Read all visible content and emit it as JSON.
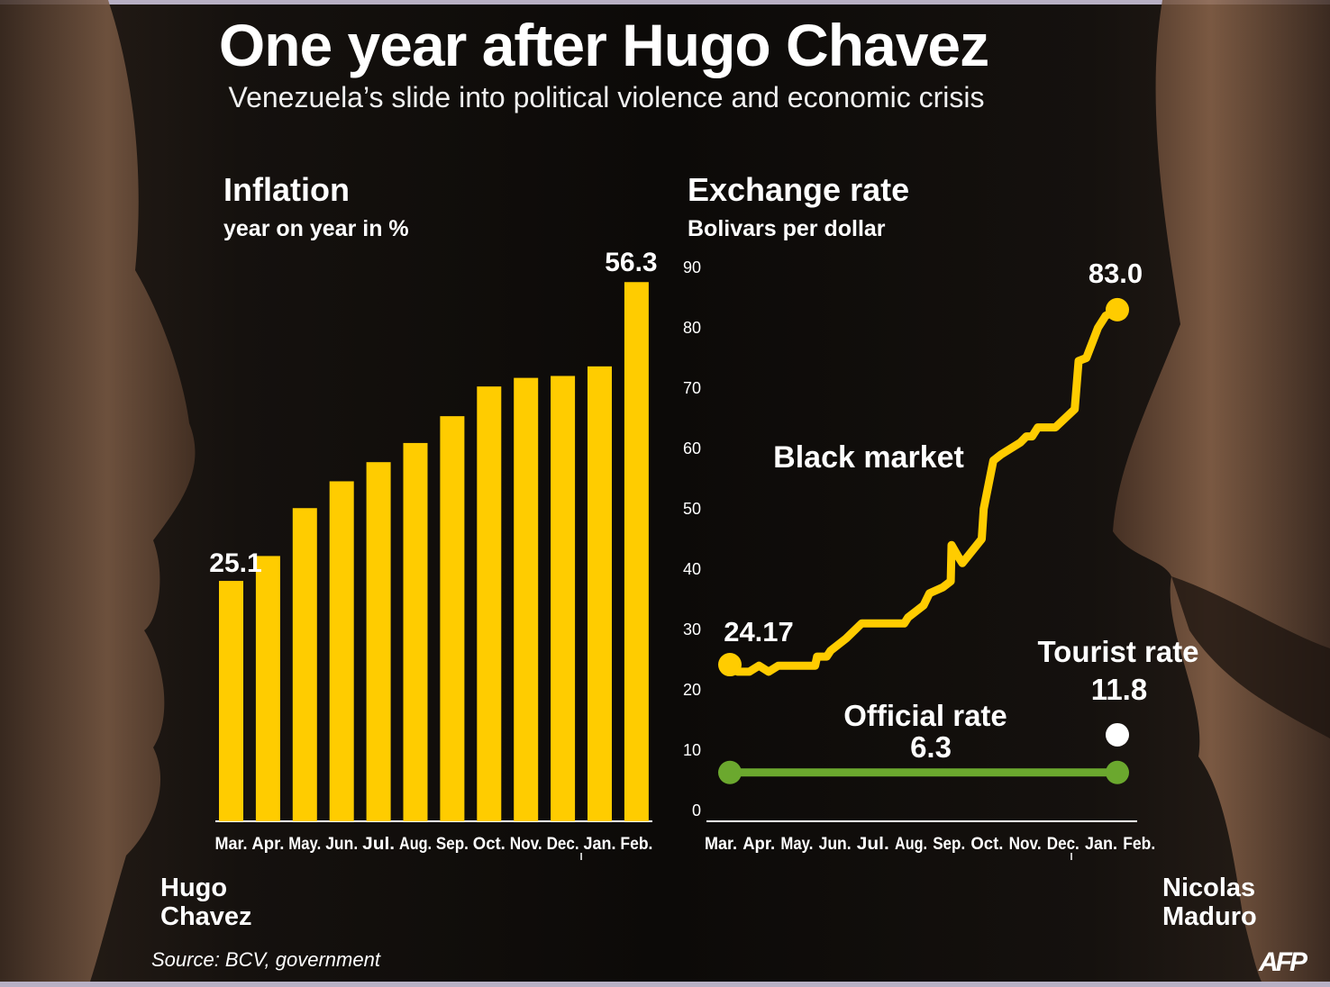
{
  "title": "One year after Hugo Chavez",
  "subtitle": "Venezuela’s slide into political violence and economic crisis",
  "source": "Source: BCV, government",
  "logo": "AFP",
  "left_person": {
    "line1": "Hugo",
    "line2": "Chavez"
  },
  "right_person": {
    "line1": "Nicolas",
    "line2": "Maduro"
  },
  "colors": {
    "yellow": "#FFCC00",
    "green": "#6BA82E",
    "white": "#FFFFFF",
    "axis": "#FFFFFF"
  },
  "chart_data": [
    {
      "type": "bar",
      "title": "Inflation",
      "subtitle": "year on year in %",
      "categories": [
        "Mar.",
        "Apr.",
        "May.",
        "Jun.",
        "Jul.",
        "Aug.",
        "Sep.",
        "Oct.",
        "Nov.",
        "Dec.",
        "Jan.",
        "Feb."
      ],
      "values": [
        25.1,
        27.7,
        32.7,
        35.5,
        37.5,
        39.5,
        42.3,
        45.4,
        46.3,
        46.5,
        47.5,
        56.3
      ],
      "value_labels": {
        "first": "25.1",
        "last": "56.3"
      },
      "grid": false,
      "year_divider_after": "Dec."
    },
    {
      "type": "line",
      "title": "Exchange rate",
      "subtitle": "Bolivars per dollar",
      "categories": [
        "Mar.",
        "Apr.",
        "May.",
        "Jun.",
        "Jul.",
        "Aug.",
        "Sep.",
        "Oct.",
        "Nov.",
        "Dec.",
        "Jan.",
        "Feb."
      ],
      "yticks": [
        0,
        10,
        20,
        30,
        40,
        50,
        60,
        70,
        80,
        90
      ],
      "ylim": [
        0,
        90
      ],
      "grid": false,
      "year_divider_after": "Dec.",
      "series": [
        {
          "name": "Black market",
          "color": "yellow",
          "start_label": "24.17",
          "end_label": "83.0",
          "points": [
            [
              0.0,
              24.17
            ],
            [
              0.2,
              23.0
            ],
            [
              0.5,
              23.0
            ],
            [
              0.75,
              24.0
            ],
            [
              1.0,
              23.0
            ],
            [
              1.25,
              24.0
            ],
            [
              1.5,
              24.0
            ],
            [
              2.0,
              24.0
            ],
            [
              2.2,
              24.0
            ],
            [
              2.25,
              25.5
            ],
            [
              2.5,
              25.5
            ],
            [
              2.6,
              26.5
            ],
            [
              3.0,
              28.5
            ],
            [
              3.4,
              31.0
            ],
            [
              3.6,
              31.0
            ],
            [
              4.0,
              31.0
            ],
            [
              4.5,
              31.0
            ],
            [
              4.6,
              32.0
            ],
            [
              5.0,
              34.0
            ],
            [
              5.15,
              36.0
            ],
            [
              5.5,
              37.0
            ],
            [
              5.7,
              38.0
            ],
            [
              5.72,
              44.0
            ],
            [
              5.9,
              42.0
            ],
            [
              6.0,
              41.0
            ],
            [
              6.5,
              45.0
            ],
            [
              6.55,
              50.0
            ],
            [
              6.8,
              58.0
            ],
            [
              7.0,
              59.0
            ],
            [
              7.5,
              61.0
            ],
            [
              7.65,
              62.0
            ],
            [
              7.8,
              62.0
            ],
            [
              7.95,
              63.5
            ],
            [
              8.4,
              63.5
            ],
            [
              8.9,
              66.5
            ],
            [
              9.0,
              74.5
            ],
            [
              9.2,
              75.0
            ],
            [
              9.5,
              80.0
            ],
            [
              9.7,
              82.0
            ],
            [
              10.0,
              83.0
            ]
          ]
        },
        {
          "name": "Official rate",
          "color": "green",
          "value_label": "6.3",
          "points": [
            [
              0.0,
              6.3
            ],
            [
              10.0,
              6.3
            ]
          ]
        },
        {
          "name": "Tourist rate",
          "color": "white",
          "value_label": "11.8",
          "points": [
            [
              10.0,
              11.8
            ]
          ]
        }
      ]
    }
  ]
}
